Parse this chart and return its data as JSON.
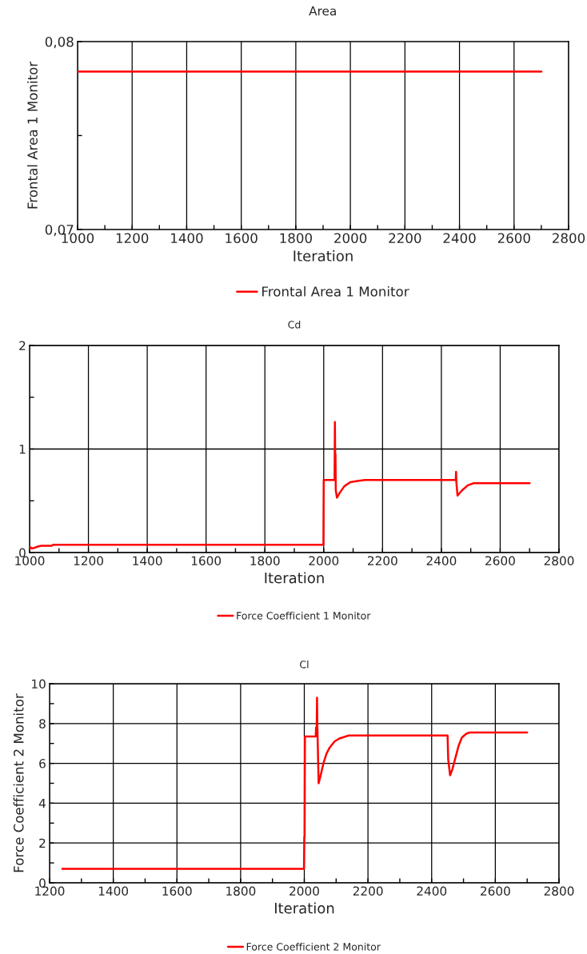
{
  "chart_data": [
    {
      "type": "line",
      "title": "Area",
      "xlabel": "Iteration",
      "ylabel": "Frontal Area 1 Monitor",
      "grid": "x",
      "legend": "bottom",
      "marker": "none",
      "line_style": "solid",
      "xlim": [
        1000,
        2800
      ],
      "xticks": [
        1000,
        {
          "value": 1100,
          "label": null
        },
        1200,
        {
          "value": 1300,
          "label": null
        },
        1400,
        {
          "value": 1500,
          "label": null
        },
        1600,
        {
          "value": 1700,
          "label": null
        },
        1800,
        {
          "value": 1900,
          "label": null
        },
        2000,
        {
          "value": 2100,
          "label": null
        },
        2200,
        {
          "value": 2300,
          "label": null
        },
        2400,
        {
          "value": 2500,
          "label": null
        },
        2600,
        {
          "value": 2700,
          "label": null
        },
        2800
      ],
      "ylim": [
        0.07,
        0.08
      ],
      "yticks": [
        {
          "value": 0.07,
          "label": "0,07"
        },
        {
          "value": 0.075,
          "label": null
        },
        {
          "value": 0.08,
          "label": "0,08"
        }
      ],
      "series": [
        {
          "name": "Frontal Area 1 Monitor",
          "color": "#ff0000",
          "x": [
            1000,
            2700
          ],
          "values": [
            0.0784,
            0.0784
          ]
        }
      ]
    },
    {
      "type": "line",
      "title": "Cd",
      "xlabel": "Iteration",
      "grid": true,
      "legend": "bottom",
      "marker": "none",
      "line_style": "solid",
      "xlim": [
        1000,
        2800
      ],
      "xticks": [
        1000,
        {
          "value": 1100,
          "label": null
        },
        1200,
        {
          "value": 1300,
          "label": null
        },
        1400,
        {
          "value": 1500,
          "label": null
        },
        1600,
        {
          "value": 1700,
          "label": null
        },
        1800,
        {
          "value": 1900,
          "label": null
        },
        2000,
        {
          "value": 2100,
          "label": null
        },
        2200,
        {
          "value": 2300,
          "label": null
        },
        2400,
        {
          "value": 2500,
          "label": null
        },
        2600,
        {
          "value": 2700,
          "label": null
        },
        2800
      ],
      "ylim": [
        0,
        2
      ],
      "yticks": [
        0,
        {
          "value": 0.5,
          "label": null
        },
        1,
        {
          "value": 1.5,
          "label": null
        },
        2
      ],
      "series": [
        {
          "name": "Force Coefficient 1 Monitor",
          "color": "#ff0000",
          "x": [
            1000,
            1003,
            1010,
            1030,
            1040,
            1075,
            1080,
            1999,
            2000,
            2037,
            2038,
            2039,
            2040,
            2041,
            2045,
            2055,
            2070,
            2090,
            2110,
            2140,
            2449,
            2450,
            2451,
            2455,
            2470,
            2490,
            2510,
            2700
          ],
          "values": [
            0.03,
            0.05,
            0.04,
            0.06,
            0.065,
            0.065,
            0.075,
            0.075,
            0.7,
            0.7,
            1.26,
            0.95,
            0.95,
            0.6,
            0.53,
            0.58,
            0.64,
            0.68,
            0.69,
            0.7,
            0.7,
            0.78,
            0.68,
            0.55,
            0.6,
            0.65,
            0.67,
            0.67
          ]
        }
      ]
    },
    {
      "type": "line",
      "title": "Cl",
      "xlabel": "Iteration",
      "ylabel": "Force Coefficient 2 Monitor",
      "grid": true,
      "legend": "bottom",
      "marker": "none",
      "line_style": "solid",
      "xlim": [
        1200,
        2800
      ],
      "xticks": [
        1200,
        {
          "value": 1300,
          "label": null
        },
        1400,
        {
          "value": 1500,
          "label": null
        },
        1600,
        {
          "value": 1700,
          "label": null
        },
        1800,
        {
          "value": 1900,
          "label": null
        },
        2000,
        {
          "value": 2100,
          "label": null
        },
        2200,
        {
          "value": 2300,
          "label": null
        },
        2400,
        {
          "value": 2500,
          "label": null
        },
        2600,
        {
          "value": 2700,
          "label": null
        },
        2800
      ],
      "ylim": [
        0,
        10
      ],
      "yticks": [
        0,
        {
          "value": 1,
          "label": null
        },
        2,
        {
          "value": 3,
          "label": null
        },
        4,
        {
          "value": 5,
          "label": null
        },
        6,
        {
          "value": 7,
          "label": null
        },
        8,
        {
          "value": 9,
          "label": null
        },
        10
      ],
      "series": [
        {
          "name": "Force Coefficient 2 Monitor",
          "color": "#ff0000",
          "x": [
            1240,
            1999,
            2000,
            2001,
            2002,
            2036,
            2037,
            2039,
            2040,
            2041,
            2045,
            2050,
            2060,
            2070,
            2080,
            2095,
            2110,
            2140,
            2450,
            2452,
            2458,
            2465,
            2475,
            2485,
            2495,
            2510,
            2520,
            2700
          ],
          "values": [
            0.7,
            0.7,
            2.3,
            2.3,
            7.35,
            7.35,
            7.8,
            7.8,
            9.3,
            7.9,
            5.0,
            5.3,
            6.0,
            6.5,
            6.8,
            7.1,
            7.25,
            7.4,
            7.4,
            6.2,
            5.4,
            5.7,
            6.3,
            6.9,
            7.3,
            7.5,
            7.55,
            7.55
          ]
        }
      ]
    }
  ]
}
